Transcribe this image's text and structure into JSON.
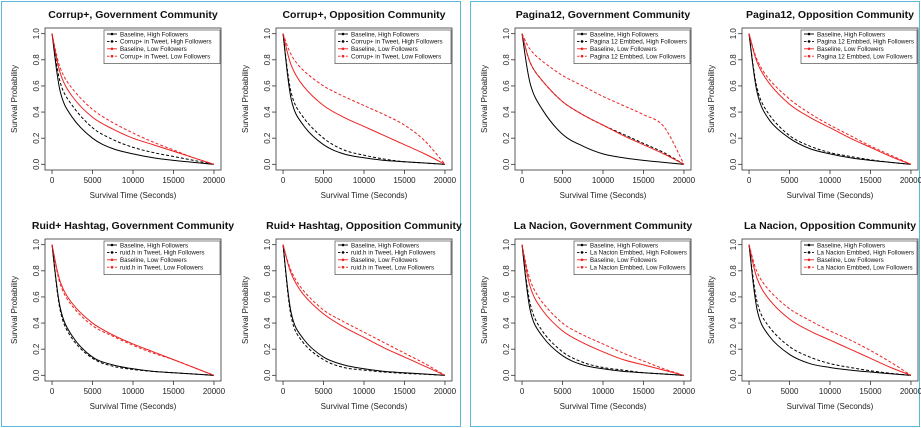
{
  "chart_data": [
    {
      "type": "line",
      "title": "Corrup+, Government Community",
      "xlabel": "Survival Time (Seconds)",
      "ylabel": "Survival Probability",
      "xlim": [
        0,
        20000
      ],
      "ylim": [
        0,
        1
      ],
      "xticks": [
        "0",
        "5000",
        "10000",
        "15000",
        "20000"
      ],
      "yticks": [
        "0.0",
        "0.2",
        "0.4",
        "0.6",
        "0.8",
        "1.0"
      ],
      "legend_position": "top-right",
      "x": [
        0,
        1000,
        2500,
        5000,
        7500,
        10000,
        12500,
        15000,
        17500,
        20000
      ],
      "series": [
        {
          "name": "Baseline, High Followers",
          "color": "#000000",
          "dash": "solid",
          "values": [
            1.0,
            0.56,
            0.36,
            0.2,
            0.12,
            0.08,
            0.05,
            0.03,
            0.015,
            0.0
          ]
        },
        {
          "name": "Corrup+ in Tweet, High Followers",
          "color": "#000000",
          "dash": "dashed",
          "values": [
            1.0,
            0.63,
            0.45,
            0.28,
            0.19,
            0.13,
            0.09,
            0.06,
            0.03,
            0.0
          ]
        },
        {
          "name": "Baseline, Low Followers",
          "color": "#ee2222",
          "dash": "solid",
          "values": [
            1.0,
            0.7,
            0.52,
            0.36,
            0.27,
            0.2,
            0.15,
            0.1,
            0.05,
            0.0
          ]
        },
        {
          "name": "Corrup+ in Tweet, Low Followers",
          "color": "#ee2222",
          "dash": "dashed",
          "values": [
            1.0,
            0.74,
            0.58,
            0.42,
            0.32,
            0.24,
            0.17,
            0.11,
            0.05,
            0.0
          ]
        }
      ]
    },
    {
      "type": "line",
      "title": "Corrup+, Opposition Community",
      "xlabel": "Survival Time (Seconds)",
      "ylabel": "Survival Probability",
      "xlim": [
        0,
        20000
      ],
      "ylim": [
        0,
        1
      ],
      "xticks": [
        "0",
        "5000",
        "10000",
        "15000",
        "20000"
      ],
      "yticks": [
        "0.0",
        "0.2",
        "0.4",
        "0.6",
        "0.8",
        "1.0"
      ],
      "legend_position": "top-right",
      "x": [
        0,
        1000,
        2500,
        5000,
        7500,
        10000,
        12500,
        15000,
        17500,
        20000
      ],
      "series": [
        {
          "name": "Baseline, High Followers",
          "color": "#000000",
          "dash": "solid",
          "values": [
            1.0,
            0.5,
            0.3,
            0.15,
            0.08,
            0.05,
            0.03,
            0.02,
            0.01,
            0.0
          ]
        },
        {
          "name": "Corrup+ in Tweet, High Followers",
          "color": "#000000",
          "dash": "dashed",
          "values": [
            1.0,
            0.55,
            0.36,
            0.2,
            0.11,
            0.07,
            0.04,
            0.02,
            0.01,
            0.0
          ]
        },
        {
          "name": "Baseline, Low Followers",
          "color": "#ee2222",
          "dash": "solid",
          "values": [
            1.0,
            0.76,
            0.6,
            0.45,
            0.36,
            0.29,
            0.22,
            0.15,
            0.08,
            0.0
          ]
        },
        {
          "name": "Corrup+ in Tweet, Low Followers",
          "color": "#ee2222",
          "dash": "dashed",
          "values": [
            1.0,
            0.84,
            0.72,
            0.6,
            0.52,
            0.45,
            0.38,
            0.3,
            0.18,
            0.0
          ]
        }
      ]
    },
    {
      "type": "line",
      "title": "Ruid+ Hashtag, Government Community",
      "xlabel": "Survival Time (Seconds)",
      "ylabel": "Survival Probability",
      "xlim": [
        0,
        20000
      ],
      "ylim": [
        0,
        1
      ],
      "xticks": [
        "0",
        "5000",
        "10000",
        "15000",
        "20000"
      ],
      "yticks": [
        "0.0",
        "0.2",
        "0.4",
        "0.6",
        "0.8",
        "1.0"
      ],
      "legend_position": "top-right",
      "x": [
        0,
        1000,
        2500,
        5000,
        7500,
        10000,
        12500,
        15000,
        17500,
        20000
      ],
      "series": [
        {
          "name": "Baseline, High Followers",
          "color": "#000000",
          "dash": "solid",
          "values": [
            1.0,
            0.52,
            0.3,
            0.14,
            0.08,
            0.05,
            0.03,
            0.02,
            0.01,
            0.0
          ]
        },
        {
          "name": "ruid.h in Tweet, High Followers",
          "color": "#000000",
          "dash": "dashed",
          "values": [
            1.0,
            0.5,
            0.28,
            0.13,
            0.07,
            0.045,
            0.03,
            0.02,
            0.01,
            0.0
          ]
        },
        {
          "name": "Baseline, Low Followers",
          "color": "#ee2222",
          "dash": "solid",
          "values": [
            1.0,
            0.72,
            0.55,
            0.4,
            0.31,
            0.24,
            0.18,
            0.12,
            0.06,
            0.0
          ]
        },
        {
          "name": "ruid.h in Tweet, Low Followers",
          "color": "#ee2222",
          "dash": "dashed",
          "values": [
            1.0,
            0.7,
            0.53,
            0.38,
            0.3,
            0.23,
            0.17,
            0.12,
            0.06,
            0.0
          ]
        }
      ]
    },
    {
      "type": "line",
      "title": "Ruid+ Hashtag, Opposition Community",
      "xlabel": "Survival Time (Seconds)",
      "ylabel": "Survival Probability",
      "xlim": [
        0,
        20000
      ],
      "ylim": [
        0,
        1
      ],
      "xticks": [
        "0",
        "5000",
        "10000",
        "15000",
        "20000"
      ],
      "yticks": [
        "0.0",
        "0.2",
        "0.4",
        "0.6",
        "0.8",
        "1.0"
      ],
      "legend_position": "top-right",
      "x": [
        0,
        1000,
        2500,
        5000,
        7500,
        10000,
        12500,
        15000,
        17500,
        20000
      ],
      "series": [
        {
          "name": "Baseline, High Followers",
          "color": "#000000",
          "dash": "solid",
          "values": [
            1.0,
            0.48,
            0.28,
            0.14,
            0.08,
            0.05,
            0.03,
            0.02,
            0.01,
            0.0
          ]
        },
        {
          "name": "ruid.h in Tweet, High Followers",
          "color": "#000000",
          "dash": "dashed",
          "values": [
            1.0,
            0.45,
            0.25,
            0.12,
            0.06,
            0.04,
            0.025,
            0.015,
            0.008,
            0.0
          ]
        },
        {
          "name": "Baseline, Low Followers",
          "color": "#ee2222",
          "dash": "solid",
          "values": [
            1.0,
            0.78,
            0.62,
            0.47,
            0.37,
            0.29,
            0.21,
            0.14,
            0.07,
            0.0
          ]
        },
        {
          "name": "ruid.h in Tweet, Low Followers",
          "color": "#ee2222",
          "dash": "dashed",
          "values": [
            1.0,
            0.8,
            0.65,
            0.5,
            0.41,
            0.33,
            0.25,
            0.17,
            0.09,
            0.0
          ]
        }
      ]
    },
    {
      "type": "line",
      "title": "Pagina12, Government Community",
      "xlabel": "Survival Time (Seconds)",
      "ylabel": "Survival Probability",
      "xlim": [
        0,
        20000
      ],
      "ylim": [
        0,
        1
      ],
      "xticks": [
        "0",
        "5000",
        "10000",
        "15000",
        "20000"
      ],
      "yticks": [
        "0.0",
        "0.2",
        "0.4",
        "0.6",
        "0.8",
        "1.0"
      ],
      "legend_position": "top-right",
      "x": [
        0,
        1000,
        2500,
        5000,
        7500,
        10000,
        12500,
        15000,
        17500,
        20000
      ],
      "series": [
        {
          "name": "Baseline, High Followers",
          "color": "#000000",
          "dash": "solid",
          "values": [
            1.0,
            0.62,
            0.42,
            0.23,
            0.14,
            0.08,
            0.05,
            0.03,
            0.015,
            0.0
          ]
        },
        {
          "name": "Pagina 12 Embbed, High Followers",
          "color": "#000000",
          "dash": "dashed",
          "values": [
            1.0,
            0.78,
            0.64,
            0.48,
            0.38,
            0.3,
            0.23,
            0.16,
            0.09,
            0.0
          ]
        },
        {
          "name": "Baseline, Low Followers",
          "color": "#ee2222",
          "dash": "solid",
          "values": [
            1.0,
            0.78,
            0.64,
            0.48,
            0.38,
            0.3,
            0.22,
            0.15,
            0.08,
            0.0
          ]
        },
        {
          "name": "Pagina 12 Embbed, Low Followers",
          "color": "#ee2222",
          "dash": "dashed",
          "values": [
            1.0,
            0.88,
            0.79,
            0.68,
            0.6,
            0.52,
            0.45,
            0.38,
            0.29,
            0.0
          ]
        }
      ]
    },
    {
      "type": "line",
      "title": "Pagina12, Opposition Community",
      "xlabel": "Survival Time (Seconds)",
      "ylabel": "Survival Probability",
      "xlim": [
        0,
        20000
      ],
      "ylim": [
        0,
        1
      ],
      "xticks": [
        "0",
        "5000",
        "10000",
        "15000",
        "20000"
      ],
      "yticks": [
        "0.0",
        "0.2",
        "0.4",
        "0.6",
        "0.8",
        "1.0"
      ],
      "legend_position": "top-right",
      "x": [
        0,
        1000,
        2500,
        5000,
        7500,
        10000,
        12500,
        15000,
        17500,
        20000
      ],
      "series": [
        {
          "name": "Baseline, High Followers",
          "color": "#000000",
          "dash": "solid",
          "values": [
            1.0,
            0.55,
            0.34,
            0.2,
            0.12,
            0.08,
            0.05,
            0.03,
            0.015,
            0.0
          ]
        },
        {
          "name": "Pagina 12 Embbed, High Followers",
          "color": "#000000",
          "dash": "dashed",
          "values": [
            1.0,
            0.58,
            0.38,
            0.22,
            0.14,
            0.09,
            0.06,
            0.035,
            0.015,
            0.0
          ]
        },
        {
          "name": "Baseline, Low Followers",
          "color": "#ee2222",
          "dash": "solid",
          "values": [
            1.0,
            0.78,
            0.62,
            0.46,
            0.36,
            0.28,
            0.2,
            0.13,
            0.06,
            0.0
          ]
        },
        {
          "name": "Pagina 12 Embbed, Low Followers",
          "color": "#ee2222",
          "dash": "dashed",
          "values": [
            1.0,
            0.8,
            0.65,
            0.5,
            0.39,
            0.3,
            0.22,
            0.14,
            0.07,
            0.0
          ]
        }
      ]
    },
    {
      "type": "line",
      "title": "La Nacion, Government Community",
      "xlabel": "Survival Time (Seconds)",
      "ylabel": "Survival Probability",
      "xlim": [
        0,
        20000
      ],
      "ylim": [
        0,
        1
      ],
      "xticks": [
        "0",
        "5000",
        "10000",
        "15000",
        "20000"
      ],
      "yticks": [
        "0.0",
        "0.2",
        "0.4",
        "0.6",
        "0.8",
        "1.0"
      ],
      "legend_position": "top-right",
      "x": [
        0,
        1000,
        2500,
        5000,
        7500,
        10000,
        12500,
        15000,
        17500,
        20000
      ],
      "series": [
        {
          "name": "Baseline, High Followers",
          "color": "#000000",
          "dash": "solid",
          "values": [
            1.0,
            0.5,
            0.3,
            0.15,
            0.08,
            0.05,
            0.03,
            0.02,
            0.01,
            0.0
          ]
        },
        {
          "name": "La Nacion Embbed, High Followers",
          "color": "#000000",
          "dash": "dashed",
          "values": [
            1.0,
            0.55,
            0.34,
            0.18,
            0.1,
            0.06,
            0.04,
            0.02,
            0.01,
            0.0
          ]
        },
        {
          "name": "Baseline, Low Followers",
          "color": "#ee2222",
          "dash": "solid",
          "values": [
            1.0,
            0.68,
            0.5,
            0.34,
            0.25,
            0.18,
            0.12,
            0.08,
            0.04,
            0.0
          ]
        },
        {
          "name": "La Nacion Embbed, Low Followers",
          "color": "#ee2222",
          "dash": "dashed",
          "values": [
            1.0,
            0.73,
            0.56,
            0.4,
            0.31,
            0.24,
            0.17,
            0.11,
            0.05,
            0.0
          ]
        }
      ]
    },
    {
      "type": "line",
      "title": "La Nacion, Opposition Community",
      "xlabel": "Survival Time (Seconds)",
      "ylabel": "Survival Probability",
      "xlim": [
        0,
        20000
      ],
      "ylim": [
        0,
        1
      ],
      "xticks": [
        "0",
        "5000",
        "10000",
        "15000",
        "20000"
      ],
      "yticks": [
        "0.0",
        "0.2",
        "0.4",
        "0.6",
        "0.8",
        "1.0"
      ],
      "legend_position": "top-right",
      "x": [
        0,
        1000,
        2500,
        5000,
        7500,
        10000,
        12500,
        15000,
        17500,
        20000
      ],
      "series": [
        {
          "name": "Baseline, High Followers",
          "color": "#000000",
          "dash": "solid",
          "values": [
            1.0,
            0.5,
            0.3,
            0.16,
            0.09,
            0.06,
            0.04,
            0.025,
            0.012,
            0.0
          ]
        },
        {
          "name": "La Nacion Embbed, High Followers",
          "color": "#000000",
          "dash": "dashed",
          "values": [
            1.0,
            0.56,
            0.37,
            0.22,
            0.14,
            0.09,
            0.06,
            0.035,
            0.015,
            0.0
          ]
        },
        {
          "name": "Baseline, Low Followers",
          "color": "#ee2222",
          "dash": "solid",
          "values": [
            1.0,
            0.74,
            0.58,
            0.43,
            0.34,
            0.27,
            0.2,
            0.13,
            0.06,
            0.0
          ]
        },
        {
          "name": "La Nacion Embbed, Low Followers",
          "color": "#ee2222",
          "dash": "dashed",
          "values": [
            1.0,
            0.79,
            0.65,
            0.51,
            0.42,
            0.34,
            0.27,
            0.19,
            0.1,
            0.0
          ]
        }
      ]
    }
  ]
}
